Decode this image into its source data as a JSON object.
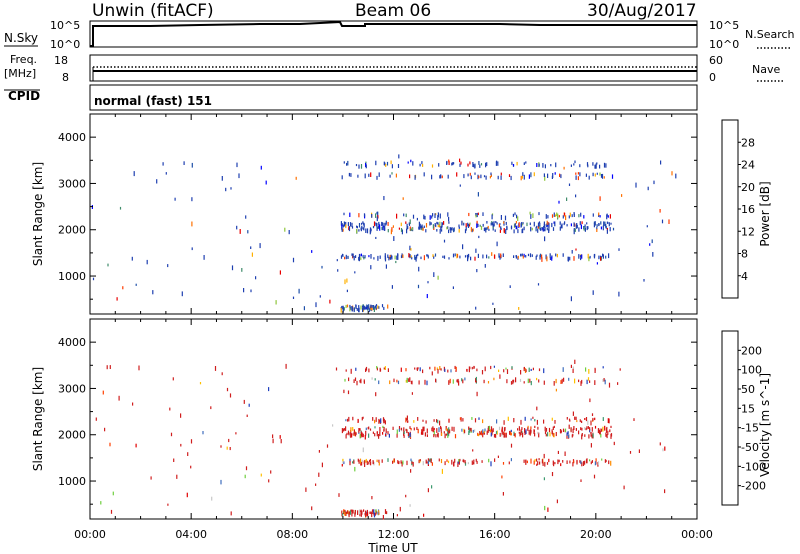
{
  "header": {
    "station": "Unwin (fitACF)",
    "beam": "Beam 06",
    "date": "30/Aug/2017"
  },
  "panels": {
    "nsky": {
      "left_label": "N.Sky",
      "left_tick_top": "10^5",
      "left_tick_bottom": "10^0",
      "right_tick_top": "10^5",
      "right_tick_bottom": "10^0",
      "right_label": "N.Search"
    },
    "freq": {
      "left_label_1": "Freq.",
      "left_label_2": "[MHz]",
      "left_tick_top": "18",
      "left_tick_bottom": "8",
      "right_tick_top": "60",
      "right_tick_bottom": "0",
      "right_label": "Nave"
    },
    "cpid": {
      "label": "CPID",
      "text": "normal (fast) 151"
    }
  },
  "axes": {
    "ylabel": "Slant Range [km]",
    "yticks": [
      "1000",
      "2000",
      "3000",
      "4000"
    ],
    "xticks": [
      "00:00",
      "04:00",
      "08:00",
      "12:00",
      "16:00",
      "20:00",
      "00:00"
    ],
    "xlabel": "Time UT"
  },
  "chart_data": [
    {
      "type": "heatmap",
      "title": "",
      "colorbar_label": "Power [dB]",
      "colorbar_ticks": [
        "4",
        "8",
        "12",
        "16",
        "20",
        "24",
        "28"
      ],
      "colors": [
        "#0000ff",
        "#1e4fa8",
        "#3f8c6a",
        "#8fc63c",
        "#ffb000",
        "#ff7000",
        "#ff3b00",
        "#e80000"
      ],
      "dominant_color": "#1e3fb0",
      "xlim_hours": [
        0,
        24
      ],
      "ylim_km": [
        180,
        4500
      ],
      "scatter_bands_km": [
        350,
        1450,
        2050,
        2150,
        2350,
        3200,
        3450
      ],
      "dense_interval_hours": [
        9.9,
        20.6
      ]
    },
    {
      "type": "heatmap",
      "title": "",
      "colorbar_label": "Velocity [m s^-1]",
      "colorbar_ticks": [
        "200",
        "100",
        "50",
        "15",
        "-15",
        "-50",
        "-100",
        "-200"
      ],
      "colors": [
        "#1f3fbf",
        "#3f6fbf",
        "#3c9a6e",
        "#6fcf3f",
        "#c8c8c8",
        "#ffc000",
        "#ff8c00",
        "#ff4000",
        "#e00000"
      ],
      "dominant_color": "#d01e1e",
      "xlim_hours": [
        0,
        24
      ],
      "ylim_km": [
        180,
        4500
      ],
      "scatter_bands_km": [
        350,
        1450,
        2050,
        2150,
        2350,
        3200,
        3450
      ],
      "dense_interval_hours": [
        9.9,
        20.6
      ]
    }
  ]
}
